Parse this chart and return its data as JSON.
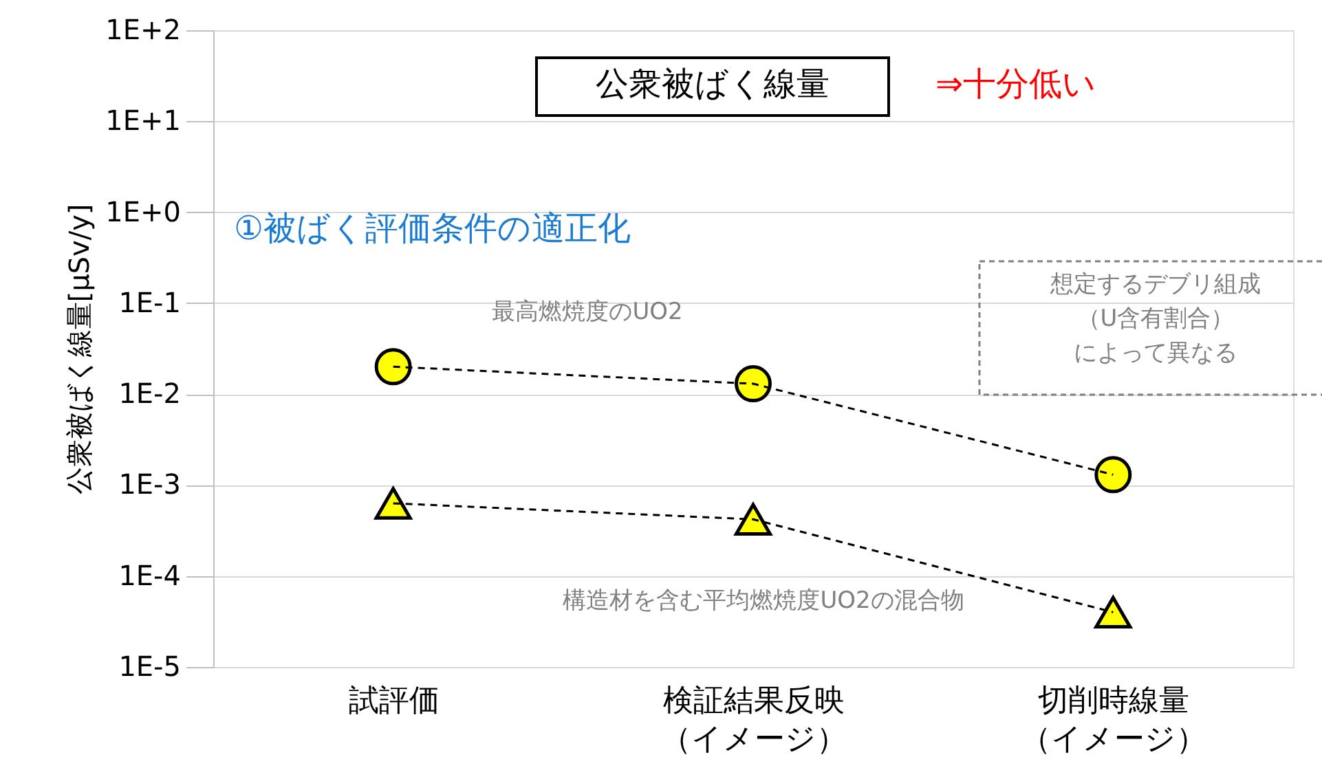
{
  "chart_data": {
    "type": "line",
    "ylabel": "公衆被ばく線量[μSv/y]",
    "categories": [
      "試評価",
      "検証結果反映（イメージ）",
      "切削時線量（イメージ）"
    ],
    "series": [
      {
        "color": "#ffff00",
        "marker": "circle",
        "values": [
          0.02,
          0.013,
          0.0013
        ]
      },
      {
        "color": "#ffff00",
        "marker": "triangle",
        "values": [
          0.00063,
          0.00042,
          4e-05
        ]
      }
    ],
    "log": true,
    "ylim": [
      1e-05,
      100
    ],
    "yticks": [
      {
        "value": 1e-05,
        "label": "1E-5"
      },
      {
        "value": 0.0001,
        "label": "1E-4"
      },
      {
        "value": 0.001,
        "label": "1E-3"
      },
      {
        "value": 0.01,
        "label": "1E-2"
      },
      {
        "value": 0.1,
        "label": "1E-1"
      },
      {
        "value": 1,
        "label": "1E+0"
      },
      {
        "value": 10,
        "label": "1E+1"
      },
      {
        "value": 100,
        "label": "1E+2"
      }
    ],
    "grid": "y",
    "line_style": "dashed",
    "annotations": [
      "公衆被ばく線量",
      "⇒十分低い",
      "①被ばく評価条件の適正化",
      "最高燃焼度のUO2",
      "構造材を含む平均燃焼度UO2の混合物",
      "想定するデブリ組成（U含有割合）によって異なる"
    ]
  }
}
